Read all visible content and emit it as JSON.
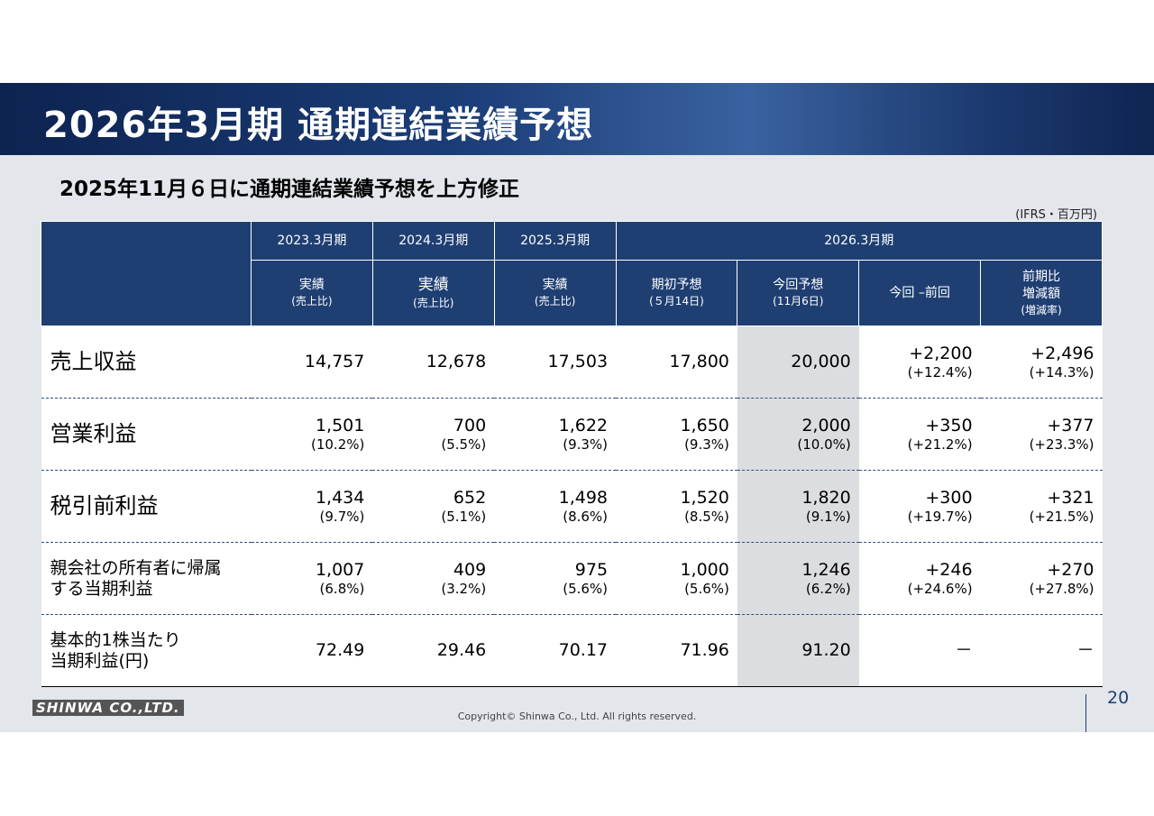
{
  "header": {
    "title": "2026年3月期 通期連結業績予想"
  },
  "subtitle": "2025年11月６日に通期連結業績予想を上方修正",
  "unit": "(IFRS・百万円)",
  "table": {
    "header_row1": [
      "2023.3月期",
      "2024.3月期",
      "2025.3月期",
      "2026.3月期"
    ],
    "header_row2": [
      [
        "実績",
        "(売上比)"
      ],
      [
        "実績",
        "(売上比)"
      ],
      [
        "実績",
        "(売上比)"
      ],
      [
        "期初予想",
        "(５月14日)"
      ],
      [
        "今回予想",
        "(11月6日)"
      ],
      [
        "今回 –前回"
      ],
      [
        "前期比",
        "増減額",
        "(増減率)"
      ]
    ],
    "rows": [
      {
        "label": [
          "売上収益"
        ],
        "cells": [
          [
            "14,757"
          ],
          [
            "12,678"
          ],
          [
            "17,503"
          ],
          [
            "17,800"
          ],
          [
            "20,000"
          ],
          [
            "+2,200",
            "(+12.4%)"
          ],
          [
            "+2,496",
            "(+14.3%)"
          ]
        ]
      },
      {
        "label": [
          "営業利益"
        ],
        "cells": [
          [
            "1,501",
            "(10.2%)"
          ],
          [
            "700",
            "(5.5%)"
          ],
          [
            "1,622",
            "(9.3%)"
          ],
          [
            "1,650",
            "(9.3%)"
          ],
          [
            "2,000",
            "(10.0%)"
          ],
          [
            "+350",
            "(+21.2%)"
          ],
          [
            "+377",
            "(+23.3%)"
          ]
        ]
      },
      {
        "label": [
          "税引前利益"
        ],
        "cells": [
          [
            "1,434",
            "(9.7%)"
          ],
          [
            "652",
            "(5.1%)"
          ],
          [
            "1,498",
            "(8.6%)"
          ],
          [
            "1,520",
            "(8.5%)"
          ],
          [
            "1,820",
            "(9.1%)"
          ],
          [
            "+300",
            "(+19.7%)"
          ],
          [
            "+321",
            "(+21.5%)"
          ]
        ]
      },
      {
        "label": [
          "親会社の所有者に帰属",
          "する当期利益"
        ],
        "cells": [
          [
            "1,007",
            "(6.8%)"
          ],
          [
            "409",
            "(3.2%)"
          ],
          [
            "975",
            "(5.6%)"
          ],
          [
            "1,000",
            "(5.6%)"
          ],
          [
            "1,246",
            "(6.2%)"
          ],
          [
            "+246",
            "(+24.6%)"
          ],
          [
            "+270",
            "(+27.8%)"
          ]
        ]
      },
      {
        "label": [
          "基本的1株当たり",
          "当期利益(円)"
        ],
        "cells": [
          [
            "72.49"
          ],
          [
            "29.46"
          ],
          [
            "70.17"
          ],
          [
            "71.96"
          ],
          [
            "91.20"
          ],
          [
            "－"
          ],
          [
            "－"
          ]
        ]
      }
    ]
  },
  "footer": {
    "logo": "SHINWA CO.,LTD.",
    "copyright": "Copyright© Shinwa Co., Ltd. All rights reserved.",
    "page": "20"
  }
}
